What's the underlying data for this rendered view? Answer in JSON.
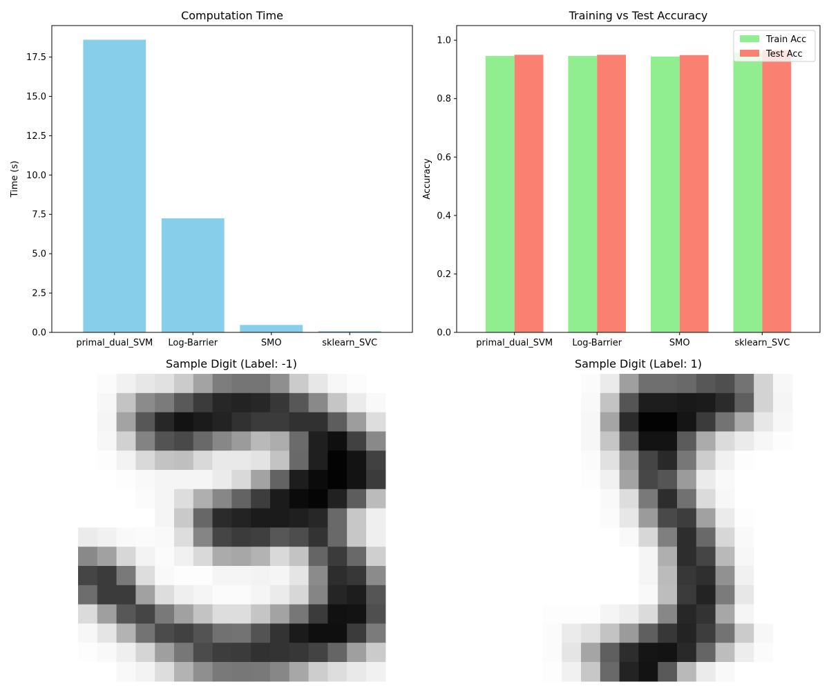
{
  "chart_data": [
    {
      "type": "bar",
      "title": "Computation Time",
      "xlabel": "",
      "ylabel": "Time (s)",
      "categories": [
        "primal_dual_SVM",
        "Log-Barrier",
        "SMO",
        "sklearn_SVC"
      ],
      "values": [
        18.6,
        7.25,
        0.47,
        0.08
      ],
      "ylim": [
        0,
        19.5
      ],
      "yticks": [
        "0.0",
        "2.5",
        "5.0",
        "7.5",
        "10.0",
        "12.5",
        "15.0",
        "17.5"
      ],
      "color": "#87CEEB"
    },
    {
      "type": "bar",
      "title": "Training vs Test Accuracy",
      "xlabel": "",
      "ylabel": "Accuracy",
      "categories": [
        "primal_dual_SVM",
        "Log-Barrier",
        "SMO",
        "sklearn_SVC"
      ],
      "series": [
        {
          "name": "Train Acc",
          "values": [
            0.946,
            0.946,
            0.944,
            0.957
          ],
          "color": "#90EE90"
        },
        {
          "name": "Test Acc",
          "values": [
            0.95,
            0.95,
            0.949,
            0.966
          ],
          "color": "#FA8072"
        }
      ],
      "ylim": [
        0,
        1.05
      ],
      "yticks": [
        "0.0",
        "0.2",
        "0.4",
        "0.6",
        "0.8",
        "1.0"
      ],
      "legend": "top-right"
    },
    {
      "type": "heatmap",
      "title": "Sample Digit (Label: -1)",
      "colormap": "gray_r",
      "vmin": 0,
      "vmax": 255,
      "grid": [
        [
          0,
          4,
          14,
          24,
          30,
          52,
          92,
          130,
          138,
          138,
          112,
          52,
          24,
          8,
          3,
          0
        ],
        [
          0,
          8,
          60,
          116,
          132,
          166,
          196,
          216,
          220,
          216,
          200,
          168,
          118,
          58,
          20,
          6
        ],
        [
          0,
          10,
          92,
          168,
          216,
          236,
          228,
          220,
          206,
          196,
          196,
          206,
          206,
          162,
          98,
          34
        ],
        [
          0,
          8,
          46,
          124,
          172,
          182,
          150,
          120,
          100,
          70,
          82,
          148,
          224,
          240,
          190,
          118
        ],
        [
          0,
          2,
          12,
          38,
          60,
          64,
          38,
          22,
          22,
          28,
          60,
          150,
          224,
          252,
          236,
          190
        ],
        [
          0,
          0,
          2,
          6,
          10,
          10,
          10,
          20,
          38,
          92,
          156,
          226,
          244,
          252,
          236,
          196
        ],
        [
          0,
          0,
          0,
          4,
          10,
          34,
          80,
          120,
          156,
          194,
          228,
          244,
          250,
          222,
          162,
          68
        ],
        [
          0,
          0,
          0,
          0,
          10,
          54,
          152,
          212,
          220,
          228,
          228,
          224,
          216,
          150,
          56,
          16
        ],
        [
          20,
          14,
          6,
          4,
          6,
          34,
          122,
          186,
          196,
          192,
          168,
          178,
          204,
          150,
          56,
          16
        ],
        [
          118,
          94,
          40,
          12,
          4,
          14,
          38,
          84,
          88,
          76,
          38,
          60,
          154,
          196,
          150,
          48
        ],
        [
          186,
          196,
          134,
          34,
          6,
          2,
          2,
          10,
          10,
          12,
          10,
          26,
          116,
          210,
          200,
          116
        ],
        [
          146,
          196,
          196,
          94,
          34,
          16,
          10,
          4,
          4,
          10,
          20,
          40,
          122,
          218,
          226,
          170
        ],
        [
          36,
          96,
          168,
          186,
          134,
          94,
          60,
          34,
          34,
          58,
          92,
          136,
          196,
          238,
          236,
          176
        ],
        [
          8,
          26,
          76,
          140,
          180,
          190,
          172,
          142,
          140,
          172,
          204,
          228,
          240,
          240,
          196,
          132
        ],
        [
          2,
          6,
          16,
          42,
          96,
          136,
          180,
          194,
          196,
          206,
          204,
          200,
          188,
          154,
          96,
          52
        ],
        [
          0,
          0,
          6,
          12,
          34,
          76,
          112,
          134,
          136,
          134,
          120,
          88,
          50,
          34,
          22,
          14
        ]
      ]
    },
    {
      "type": "heatmap",
      "title": "Sample Digit (Label: 1)",
      "colormap": "gray_r",
      "vmin": 0,
      "vmax": 255,
      "grid": [
        [
          0,
          0,
          0,
          0,
          0,
          4,
          20,
          96,
          144,
          144,
          150,
          168,
          176,
          140,
          44,
          8
        ],
        [
          0,
          0,
          0,
          0,
          0,
          6,
          60,
          170,
          226,
          226,
          230,
          228,
          212,
          160,
          44,
          10
        ],
        [
          0,
          0,
          0,
          0,
          0,
          8,
          90,
          212,
          252,
          252,
          234,
          196,
          140,
          84,
          24,
          8
        ],
        [
          0,
          0,
          0,
          0,
          0,
          8,
          58,
          164,
          236,
          236,
          164,
          84,
          36,
          20,
          8,
          2
        ],
        [
          0,
          0,
          0,
          0,
          0,
          4,
          30,
          102,
          186,
          214,
          136,
          50,
          14,
          2,
          0,
          0
        ],
        [
          0,
          0,
          0,
          0,
          0,
          2,
          14,
          92,
          184,
          170,
          100,
          20,
          6,
          0,
          0,
          0
        ],
        [
          0,
          0,
          0,
          0,
          0,
          0,
          6,
          34,
          134,
          210,
          142,
          36,
          8,
          0,
          0,
          0
        ],
        [
          0,
          0,
          0,
          0,
          0,
          0,
          4,
          24,
          100,
          182,
          194,
          94,
          20,
          2,
          0,
          0
        ],
        [
          0,
          0,
          0,
          0,
          0,
          0,
          0,
          6,
          40,
          128,
          210,
          150,
          40,
          6,
          0,
          0
        ],
        [
          0,
          0,
          0,
          0,
          0,
          0,
          0,
          0,
          10,
          80,
          210,
          186,
          70,
          8,
          0,
          0
        ],
        [
          0,
          0,
          0,
          0,
          0,
          0,
          0,
          0,
          10,
          68,
          200,
          208,
          110,
          14,
          0,
          0
        ],
        [
          0,
          0,
          0,
          0,
          0,
          0,
          0,
          0,
          6,
          66,
          196,
          220,
          132,
          24,
          0,
          0
        ],
        [
          0,
          0,
          0,
          2,
          2,
          2,
          10,
          18,
          36,
          120,
          216,
          204,
          88,
          10,
          0,
          0
        ],
        [
          0,
          0,
          0,
          4,
          20,
          30,
          60,
          100,
          160,
          200,
          220,
          194,
          140,
          52,
          8,
          0
        ],
        [
          0,
          0,
          0,
          4,
          26,
          90,
          160,
          210,
          234,
          236,
          214,
          154,
          66,
          18,
          4,
          0
        ],
        [
          0,
          0,
          0,
          2,
          14,
          56,
          150,
          220,
          236,
          166,
          70,
          20,
          6,
          0,
          0,
          0
        ]
      ]
    }
  ]
}
